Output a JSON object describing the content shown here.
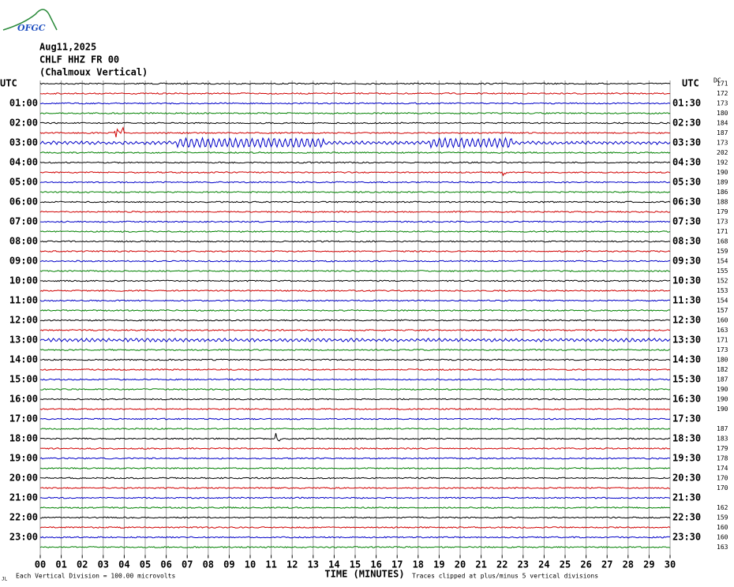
{
  "chart_data": {
    "type": "helicorder",
    "logo": "OFGC",
    "title_lines": [
      "Aug11,2025",
      "CHLF HHZ FR 00",
      "(Chalmoux Vertical)"
    ],
    "dc_label": "DC",
    "left_labels": [
      "UTC",
      "01:00",
      "02:00",
      "03:00",
      "04:00",
      "05:00",
      "06:00",
      "07:00",
      "08:00",
      "09:00",
      "10:00",
      "11:00",
      "12:00",
      "13:00",
      "14:00",
      "15:00",
      "16:00",
      "17:00",
      "18:00",
      "19:00",
      "20:00",
      "21:00",
      "22:00",
      "23:00"
    ],
    "right_labels": [
      "UTC",
      "01:30",
      "02:30",
      "03:30",
      "04:30",
      "05:30",
      "06:30",
      "07:30",
      "08:30",
      "09:30",
      "10:30",
      "11:30",
      "12:30",
      "13:30",
      "14:30",
      "15:30",
      "16:30",
      "17:30",
      "18:30",
      "19:30",
      "20:30",
      "21:30",
      "22:30",
      "23:30"
    ],
    "dc_values": [
      171,
      172,
      173,
      180,
      184,
      187,
      173,
      202,
      192,
      190,
      189,
      186,
      188,
      179,
      173,
      171,
      168,
      159,
      154,
      155,
      152,
      153,
      154,
      157,
      160,
      163,
      171,
      173,
      180,
      182,
      187,
      190,
      190,
      190,
      null,
      187,
      183,
      179,
      178,
      174,
      170,
      170,
      null,
      162,
      159,
      160,
      160,
      163
    ],
    "row_colors": [
      "#000000",
      "#d00000",
      "#0000c8",
      "#008000"
    ],
    "xlim": [
      0,
      30
    ],
    "xticks": [
      {
        "value": 0,
        "label": "00"
      },
      {
        "value": 1,
        "label": "01"
      },
      {
        "value": 2,
        "label": "02"
      },
      {
        "value": 3,
        "label": "03"
      },
      {
        "value": 4,
        "label": "04"
      },
      {
        "value": 5,
        "label": "05"
      },
      {
        "value": 6,
        "label": "06"
      },
      {
        "value": 7,
        "label": "07"
      },
      {
        "value": 8,
        "label": "08"
      },
      {
        "value": 9,
        "label": "09"
      },
      10,
      11,
      12,
      13,
      14,
      15,
      16,
      17,
      18,
      19,
      20,
      21,
      22,
      23,
      24,
      25,
      26,
      27,
      28,
      29,
      30
    ],
    "xlabel": "TIME (MINUTES)",
    "scale_note": "Each Vertical Division =  100.00 microvolts",
    "clip_note": "Traces clipped at plus/minus 5 vertical divisions",
    "corner_mark": "JL"
  }
}
